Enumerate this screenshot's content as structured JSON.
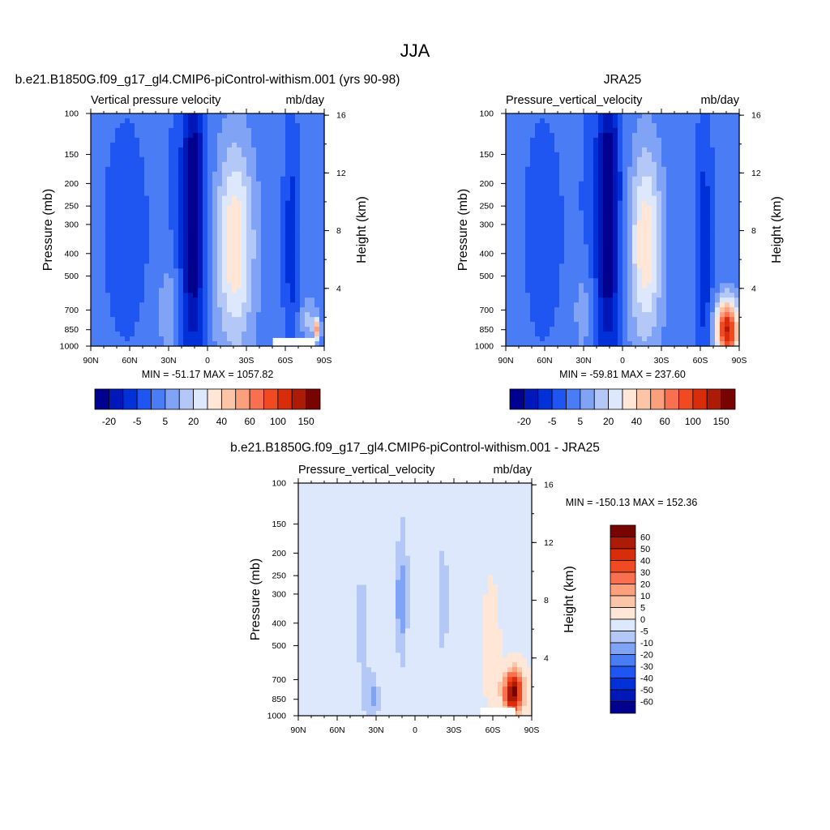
{
  "page_title": "JJA",
  "chart_data": [
    {
      "type": "heatmap",
      "title": "b.e21.B1850G.f09_g17_gl4.CMIP6-piControl-withism.001 (yrs 90-98)",
      "left_string": "Vertical pressure velocity",
      "right_string": "mb/day",
      "xlabel": "",
      "ylabel": "Pressure (mb)",
      "y2label": "Height (km)",
      "x_ticks": [
        "90N",
        "60N",
        "30N",
        "0",
        "30S",
        "60S",
        "90S"
      ],
      "y_ticks": [
        100,
        150,
        200,
        250,
        300,
        400,
        500,
        700,
        850,
        1000
      ],
      "y2_ticks": [
        16,
        12,
        8,
        4
      ],
      "stats": "MIN = -51.17  MAX = 1057.82",
      "colorbar_labels": [
        "-20",
        "-5",
        "5",
        "20",
        "40",
        "60",
        "100",
        "150"
      ],
      "colors": [
        "#00008f",
        "#0018b8",
        "#0030d8",
        "#1f55f0",
        "#4a7cf5",
        "#80a3f5",
        "#b3c8f7",
        "#dde8fc",
        "#ffe6d6",
        "#fdc5a8",
        "#fb9f7d",
        "#f8704f",
        "#f04a23",
        "#d92c0a",
        "#ad1a06",
        "#780402"
      ]
    },
    {
      "type": "heatmap",
      "title": "JRA25",
      "left_string": "Pressure_vertical_velocity",
      "right_string": "mb/day",
      "xlabel": "",
      "ylabel": "Pressure (mb)",
      "y2label": "Height (km)",
      "x_ticks": [
        "90N",
        "60N",
        "30N",
        "0",
        "30S",
        "60S",
        "90S"
      ],
      "y_ticks": [
        100,
        150,
        200,
        250,
        300,
        400,
        500,
        700,
        850,
        1000
      ],
      "y2_ticks": [
        16,
        12,
        8,
        4
      ],
      "stats": "MIN = -59.81  MAX = 237.60",
      "colorbar_labels": [
        "-20",
        "-5",
        "5",
        "20",
        "40",
        "60",
        "100",
        "150"
      ],
      "colors": [
        "#00008f",
        "#0018b8",
        "#0030d8",
        "#1f55f0",
        "#4a7cf5",
        "#80a3f5",
        "#b3c8f7",
        "#dde8fc",
        "#ffe6d6",
        "#fdc5a8",
        "#fb9f7d",
        "#f8704f",
        "#f04a23",
        "#d92c0a",
        "#ad1a06",
        "#780402"
      ]
    },
    {
      "type": "heatmap",
      "title": "b.e21.B1850G.f09_g17_gl4.CMIP6-piControl-withism.001 - JRA25",
      "left_string": "Pressure_vertical_velocity",
      "right_string": "mb/day",
      "xlabel": "",
      "ylabel": "Pressure (mb)",
      "y2label": "Height (km)",
      "x_ticks": [
        "90N",
        "60N",
        "30N",
        "0",
        "30S",
        "60S",
        "90S"
      ],
      "y_ticks": [
        100,
        150,
        200,
        250,
        300,
        400,
        500,
        700,
        850,
        1000
      ],
      "y2_ticks": [
        16,
        12,
        8,
        4
      ],
      "stats": "MIN = -150.13  MAX = 152.36",
      "colorbar_labels": [
        "60",
        "50",
        "40",
        "30",
        "20",
        "10",
        "5",
        "0",
        "-5",
        "-10",
        "-20",
        "-30",
        "-40",
        "-50",
        "-60"
      ],
      "colors": [
        "#780402",
        "#ad1a06",
        "#d92c0a",
        "#f04a23",
        "#f8704f",
        "#fb9f7d",
        "#fdc5a8",
        "#ffe6d6",
        "#dde8fc",
        "#b3c8f7",
        "#80a3f5",
        "#4a7cf5",
        "#1f55f0",
        "#0030d8",
        "#0018b8",
        "#00008f"
      ]
    }
  ]
}
